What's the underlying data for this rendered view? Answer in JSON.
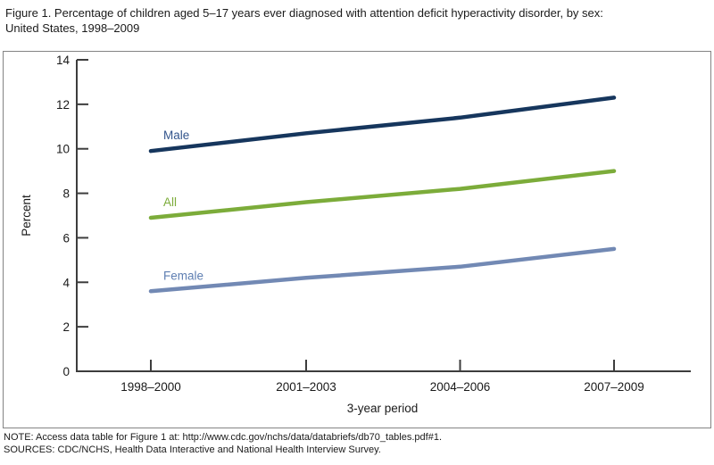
{
  "title": {
    "line1": "Figure 1. Percentage of children aged 5–17 years ever diagnosed with attention deficit hyperactivity disorder, by sex:",
    "line2": "United States, 1998–2009"
  },
  "chart_data": {
    "type": "line",
    "categories": [
      "1998–2000",
      "2001–2003",
      "2004–2006",
      "2007–2009"
    ],
    "series": [
      {
        "name": "Male",
        "values": [
          9.9,
          10.7,
          11.4,
          12.3
        ],
        "line_color": "#16365D",
        "label_color": "#33558C"
      },
      {
        "name": "All",
        "values": [
          6.9,
          7.6,
          8.2,
          9.0
        ],
        "line_color": "#7CAC3A",
        "label_color": "#7CAC3A"
      },
      {
        "name": "Female",
        "values": [
          3.6,
          4.2,
          4.7,
          5.5
        ],
        "line_color": "#7289B4",
        "label_color": "#5F7FB2"
      }
    ],
    "xlabel": "3-year period",
    "ylabel": "Percent",
    "ylim": [
      0,
      14
    ],
    "ytick_step": 2,
    "grid": false,
    "legend_position": "inline-labels",
    "axis_color": "#3d3d3d",
    "tick_label_color": "#1a1a1a"
  },
  "notes": {
    "note": "NOTE: Access data table for Figure 1 at: http://www.cdc.gov/nchs/data/databriefs/db70_tables.pdf#1.",
    "sources": "SOURCES: CDC/NCHS, Health Data Interactive and National Health Interview Survey."
  }
}
